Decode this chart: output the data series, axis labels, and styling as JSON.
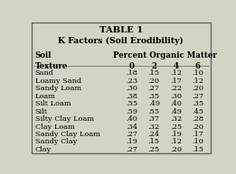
{
  "title_line1": "TABLE 1",
  "title_line2": "K Factors (Soil Erodibility)",
  "col_sub_headers": [
    "0",
    "2",
    "4",
    "6"
  ],
  "rows": [
    [
      "Sand",
      ".18",
      ".15",
      ".12",
      ".10"
    ],
    [
      "Loamy Sand",
      ".23",
      ".20",
      ".17",
      ".12"
    ],
    [
      "Sandy Loam",
      ".30",
      ".27",
      ".22",
      ".20"
    ],
    [
      "Loam",
      ".38",
      ".35",
      ".30",
      ".27"
    ],
    [
      "Silt Loam",
      ".55",
      ".49",
      ".40",
      ".35"
    ],
    [
      "Silt",
      ".59",
      ".55",
      ".49",
      ".45"
    ],
    [
      "Silty Clay Loam",
      ".40",
      ".37",
      ".32",
      ".28"
    ],
    [
      "Clay Loam",
      ".34",
      ".32",
      ".25",
      ".20"
    ],
    [
      "Sandy Clay Loam",
      ".27",
      ".24",
      ".19",
      ".17"
    ],
    [
      "Sandy Clay",
      ".19",
      ".15",
      ".12",
      ".10"
    ],
    [
      "Clay",
      ".27",
      ".25",
      ".20",
      ".15"
    ]
  ],
  "bg_color": "#d4d4c4",
  "text_color": "#000000",
  "font_size": 6.2,
  "title_font_size": 7.2
}
